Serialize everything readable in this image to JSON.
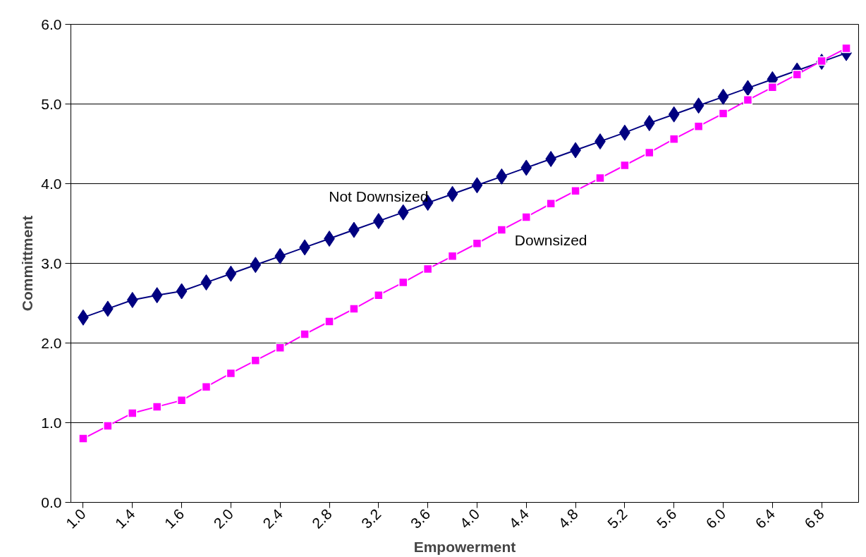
{
  "chart_data": {
    "type": "line",
    "xlabel": "Empowerment",
    "ylabel": "Committment",
    "categories": [
      "1.0",
      null,
      "1.4",
      null,
      "1.6",
      null,
      "2.0",
      null,
      "2.4",
      null,
      "2.8",
      null,
      "3.2",
      null,
      "3.6",
      null,
      "4.0",
      null,
      "4.4",
      null,
      "4.8",
      null,
      "5.2",
      null,
      "5.6",
      null,
      "6.0",
      null,
      "6.4",
      null,
      "6.8",
      null
    ],
    "series": [
      {
        "name": "Not Downsized",
        "color": "#000080",
        "marker": "diamond",
        "values": [
          2.32,
          2.43,
          2.54,
          2.6,
          2.65,
          2.76,
          2.87,
          2.98,
          3.09,
          3.2,
          3.31,
          3.42,
          3.53,
          3.64,
          3.76,
          3.87,
          3.98,
          4.09,
          4.2,
          4.31,
          4.42,
          4.53,
          4.64,
          4.76,
          4.87,
          4.98,
          5.09,
          5.2,
          5.31,
          5.42,
          5.53,
          5.64
        ]
      },
      {
        "name": "Downsized",
        "color": "#ff00ff",
        "marker": "square",
        "values": [
          0.8,
          0.96,
          1.12,
          1.2,
          1.28,
          1.45,
          1.62,
          1.78,
          1.94,
          2.11,
          2.27,
          2.43,
          2.6,
          2.76,
          2.93,
          3.09,
          3.25,
          3.42,
          3.58,
          3.75,
          3.91,
          4.07,
          4.23,
          4.39,
          4.56,
          4.72,
          4.88,
          5.05,
          5.21,
          5.37,
          5.54,
          5.7
        ]
      }
    ],
    "ylim": [
      0,
      6
    ],
    "yticks": [
      {
        "value": 0,
        "label": "0.0"
      },
      {
        "value": 1,
        "label": "1.0"
      },
      {
        "value": 2,
        "label": "2.0"
      },
      {
        "value": 3,
        "label": "3.0"
      },
      {
        "value": 4,
        "label": "4.0"
      },
      {
        "value": 5,
        "label": "5.0"
      },
      {
        "value": 6,
        "label": "6.0"
      }
    ],
    "grid": "y",
    "line_style": "solid"
  }
}
